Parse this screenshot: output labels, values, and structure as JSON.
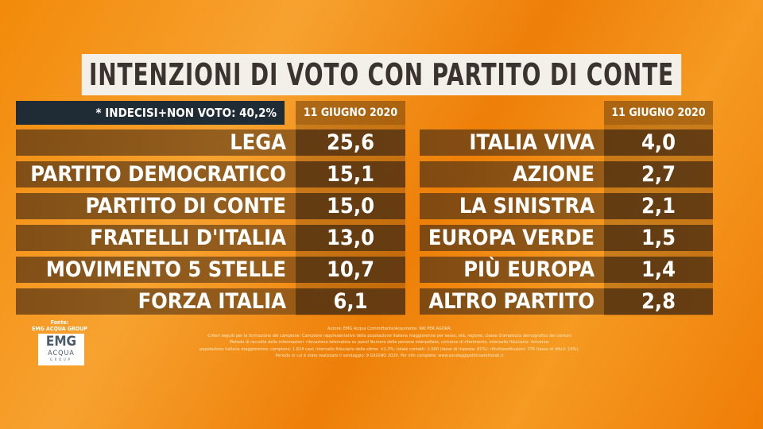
{
  "title": "INTENZIONI DI VOTO CON PARTITO DI CONTE",
  "note": "* INDECISI+NON VOTO: 40,2%",
  "left": {
    "date": "11 GIUGNO 2020",
    "rows": [
      {
        "party": "LEGA",
        "value": "25,6"
      },
      {
        "party": "PARTITO DEMOCRATICO",
        "value": "15,1"
      },
      {
        "party": "PARTITO DI CONTE",
        "value": "15,0"
      },
      {
        "party": "FRATELLI D'ITALIA",
        "value": "13,0"
      },
      {
        "party": "MOVIMENTO 5 STELLE",
        "value": "10,7"
      },
      {
        "party": "FORZA ITALIA",
        "value": "6,1"
      }
    ]
  },
  "right": {
    "date": "11 GIUGNO 2020",
    "rows": [
      {
        "party": "ITALIA VIVA",
        "value": "4,0"
      },
      {
        "party": "AZIONE",
        "value": "2,7"
      },
      {
        "party": "LA SINISTRA",
        "value": "2,1"
      },
      {
        "party": "EUROPA VERDE",
        "value": "1,5"
      },
      {
        "party": "PIÙ EUROPA",
        "value": "1,4"
      },
      {
        "party": "ALTRO PARTITO",
        "value": "2,8"
      }
    ]
  },
  "source": {
    "label": "Fonte:",
    "name": "EMG ACQUA GROUP",
    "logo": {
      "line1": "EMG",
      "line2": "ACQUA",
      "line3": "GROUP"
    }
  },
  "footnote": [
    "Autore: EMG Acqua Committente/Acquirente: RAI PER AGORÀ;",
    "Criteri seguiti per la formazione del campione: Campione rappresentativo della popolazione italiana maggiorenne per sesso, età, regione, classe d'ampiezza demografica dei comuni",
    "Metodo di raccolta delle informazioni: rilevazione telematica su panel Numero delle persone interpellate, universo di riferimento, intervallo fiduciario: Universo:",
    "popolazione italiana maggiorenne; campione: 1.624 casi; intervallo fiduciario delle stime: ±2,3%; totale contatti: 2.000 (tasso di risposta: 81%); rifiuti/sostituzioni: 376 (tasso di rifiuti: 19%).",
    "Periodo in cui è stato realizzato il sondaggio: 9 GIUGNO 2020. Per info complete: www.sondaggipoliticoelettorali.it"
  ]
}
